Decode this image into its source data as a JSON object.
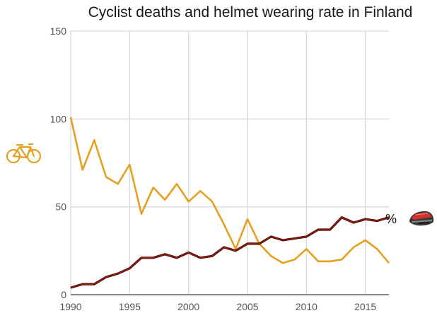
{
  "chart_data": {
    "type": "line",
    "title": "Cyclist deaths and helmet wearing rate in Finland",
    "xlabel": "",
    "ylabel": "",
    "xlim": [
      1990,
      2017
    ],
    "ylim": [
      0,
      150
    ],
    "x_ticks": [
      1990,
      1995,
      2000,
      2005,
      2010,
      2015
    ],
    "x_tick_labels": [
      "1990",
      "1995",
      "2000",
      "2005",
      "2010",
      "2015"
    ],
    "y_ticks": [
      0,
      50,
      100,
      150
    ],
    "y_tick_labels": [
      "0",
      "50",
      "100",
      "150"
    ],
    "grid": true,
    "x": [
      1990,
      1991,
      1992,
      1993,
      1994,
      1995,
      1996,
      1997,
      1998,
      1999,
      2000,
      2001,
      2002,
      2003,
      2004,
      2005,
      2006,
      2007,
      2008,
      2009,
      2010,
      2011,
      2012,
      2013,
      2014,
      2015,
      2016,
      2017
    ],
    "series": [
      {
        "name": "Cyclist deaths",
        "icon": "bicycle-icon",
        "color": "#e6a021",
        "values": [
          101,
          71,
          88,
          67,
          63,
          74,
          46,
          61,
          54,
          63,
          53,
          59,
          53,
          40,
          26,
          43,
          29,
          22,
          18,
          20,
          26,
          19,
          19,
          20,
          27,
          31,
          26,
          18
        ]
      },
      {
        "name": "Helmet wearing rate",
        "unit_label": "%",
        "icon": "helmet-icon",
        "color": "#8b1a10",
        "values": [
          4,
          6,
          6,
          10,
          12,
          15,
          21,
          21,
          23,
          21,
          24,
          21,
          22,
          27,
          25,
          29,
          29,
          33,
          31,
          32,
          33,
          37,
          37,
          44,
          41,
          43,
          42,
          44
        ]
      }
    ],
    "legend": "inline-icons: bicycle at left beside deaths line, '%' and helmet at right end of helmet line"
  }
}
